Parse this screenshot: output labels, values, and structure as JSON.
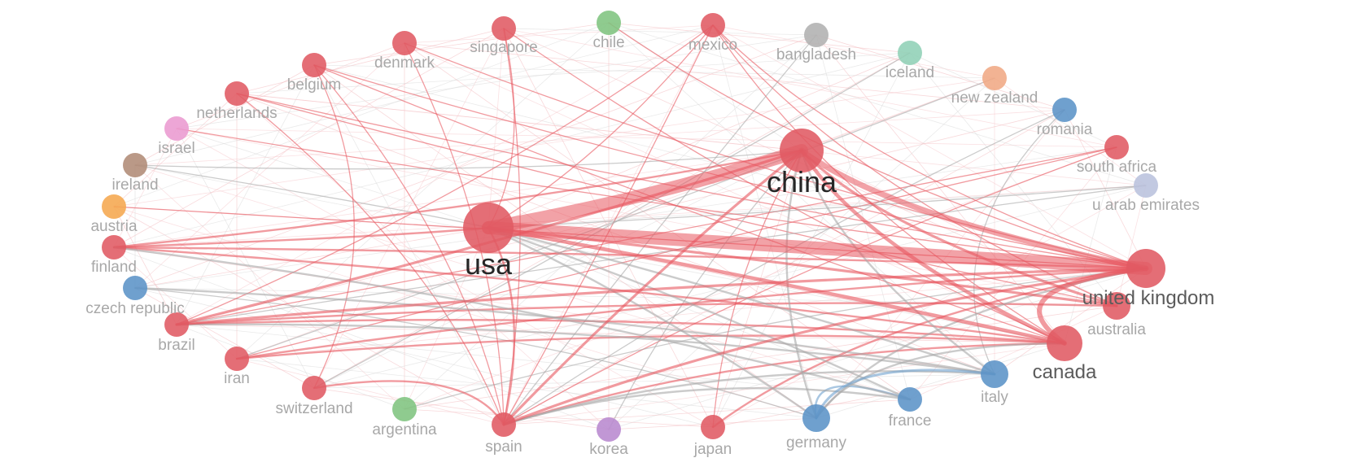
{
  "colors": {
    "red": "#e05a63",
    "blue": "#5b93c7",
    "green": "#7fc47f",
    "grey": "#b0b0b0",
    "teal": "#8fd0b6",
    "peach": "#f0a884",
    "pink": "#ea9ad0",
    "brown": "#b08b76",
    "orange": "#f5a74e",
    "lavender": "#b9c1dd",
    "purple": "#b889cf",
    "edge_red": "#e8565f",
    "edge_grey": "#a9a9a9",
    "edge_blue": "#6fa2cf"
  },
  "nodes": [
    {
      "id": "usa",
      "label": "usa",
      "color": "red",
      "weight": 10
    },
    {
      "id": "china",
      "label": "china",
      "color": "red",
      "weight": 8
    },
    {
      "id": "united_kingdom",
      "label": "united kingdom",
      "color": "red",
      "weight": 7
    },
    {
      "id": "canada",
      "label": "canada",
      "color": "red",
      "weight": 6
    },
    {
      "id": "australia",
      "label": "australia",
      "color": "red",
      "weight": 3
    },
    {
      "id": "italy",
      "label": "italy",
      "color": "blue",
      "weight": 3
    },
    {
      "id": "germany",
      "label": "germany",
      "color": "blue",
      "weight": 3
    },
    {
      "id": "france",
      "label": "france",
      "color": "blue",
      "weight": 2
    },
    {
      "id": "japan",
      "label": "japan",
      "color": "red",
      "weight": 2
    },
    {
      "id": "korea",
      "label": "korea",
      "color": "purple",
      "weight": 2
    },
    {
      "id": "spain",
      "label": "spain",
      "color": "red",
      "weight": 2
    },
    {
      "id": "argentina",
      "label": "argentina",
      "color": "green",
      "weight": 2
    },
    {
      "id": "switzerland",
      "label": "switzerland",
      "color": "red",
      "weight": 2
    },
    {
      "id": "iran",
      "label": "iran",
      "color": "red",
      "weight": 2
    },
    {
      "id": "brazil",
      "label": "brazil",
      "color": "red",
      "weight": 2
    },
    {
      "id": "czech_republic",
      "label": "czech republic",
      "color": "blue",
      "weight": 2
    },
    {
      "id": "finland",
      "label": "finland",
      "color": "red",
      "weight": 2
    },
    {
      "id": "austria",
      "label": "austria",
      "color": "orange",
      "weight": 2
    },
    {
      "id": "ireland",
      "label": "ireland",
      "color": "brown",
      "weight": 2
    },
    {
      "id": "israel",
      "label": "israel",
      "color": "pink",
      "weight": 2
    },
    {
      "id": "netherlands",
      "label": "netherlands",
      "color": "red",
      "weight": 2
    },
    {
      "id": "belgium",
      "label": "belgium",
      "color": "red",
      "weight": 2
    },
    {
      "id": "denmark",
      "label": "denmark",
      "color": "red",
      "weight": 2
    },
    {
      "id": "singapore",
      "label": "singapore",
      "color": "red",
      "weight": 2
    },
    {
      "id": "chile",
      "label": "chile",
      "color": "green",
      "weight": 2
    },
    {
      "id": "mexico",
      "label": "mexico",
      "color": "red",
      "weight": 2
    },
    {
      "id": "bangladesh",
      "label": "bangladesh",
      "color": "grey",
      "weight": 2
    },
    {
      "id": "iceland",
      "label": "iceland",
      "color": "teal",
      "weight": 2
    },
    {
      "id": "new_zealand",
      "label": "new zealand",
      "color": "peach",
      "weight": 2
    },
    {
      "id": "romania",
      "label": "romania",
      "color": "blue",
      "weight": 2
    },
    {
      "id": "south_africa",
      "label": "south africa",
      "color": "red",
      "weight": 2
    },
    {
      "id": "u_arab_emirates",
      "label": "u arab emirates",
      "color": "lavender",
      "weight": 2
    }
  ],
  "edges": [
    {
      "source": "usa",
      "target": "china",
      "weight": 9,
      "color": "edge_red"
    },
    {
      "source": "usa",
      "target": "united_kingdom",
      "weight": 9,
      "color": "edge_red"
    },
    {
      "source": "china",
      "target": "united_kingdom",
      "weight": 6,
      "color": "edge_red"
    },
    {
      "source": "china",
      "target": "canada",
      "weight": 4,
      "color": "edge_red"
    },
    {
      "source": "united_kingdom",
      "target": "canada",
      "weight": 5,
      "color": "edge_red"
    },
    {
      "source": "usa",
      "target": "canada",
      "weight": 4,
      "color": "edge_red"
    },
    {
      "source": "usa",
      "target": "australia",
      "weight": 3,
      "color": "edge_red"
    },
    {
      "source": "china",
      "target": "australia",
      "weight": 3,
      "color": "edge_red"
    },
    {
      "source": "finland",
      "target": "china",
      "weight": 2,
      "color": "edge_red"
    },
    {
      "source": "finland",
      "target": "usa",
      "weight": 2,
      "color": "edge_red"
    },
    {
      "source": "finland",
      "target": "united_kingdom",
      "weight": 2,
      "color": "edge_red"
    },
    {
      "source": "finland",
      "target": "canada",
      "weight": 2,
      "color": "edge_red"
    },
    {
      "source": "brazil",
      "target": "china",
      "weight": 3,
      "color": "edge_red"
    },
    {
      "source": "brazil",
      "target": "united_kingdom",
      "weight": 3,
      "color": "edge_red"
    },
    {
      "source": "brazil",
      "target": "canada",
      "weight": 2,
      "color": "edge_red"
    },
    {
      "source": "brazil",
      "target": "australia",
      "weight": 2,
      "color": "edge_red"
    },
    {
      "source": "spain",
      "target": "china",
      "weight": 3,
      "color": "edge_red"
    },
    {
      "source": "spain",
      "target": "united_kingdom",
      "weight": 3,
      "color": "edge_red"
    },
    {
      "source": "spain",
      "target": "usa",
      "weight": 2,
      "color": "edge_red"
    },
    {
      "source": "spain",
      "target": "canada",
      "weight": 2,
      "color": "edge_red"
    },
    {
      "source": "switzerland",
      "target": "spain",
      "weight": 2,
      "color": "edge_red"
    },
    {
      "source": "japan",
      "target": "united_kingdom",
      "weight": 2,
      "color": "edge_red"
    },
    {
      "source": "japan",
      "target": "china",
      "weight": 1,
      "color": "edge_red"
    },
    {
      "source": "iran",
      "target": "united_kingdom",
      "weight": 2,
      "color": "edge_red"
    },
    {
      "source": "iran",
      "target": "canada",
      "weight": 2,
      "color": "edge_red"
    },
    {
      "source": "ireland",
      "target": "china",
      "weight": 1,
      "color": "edge_grey"
    },
    {
      "source": "ireland",
      "target": "usa",
      "weight": 1,
      "color": "edge_grey"
    },
    {
      "source": "germany",
      "target": "italy",
      "weight": 3,
      "color": "edge_blue"
    },
    {
      "source": "germany",
      "target": "france",
      "weight": 2,
      "color": "edge_blue"
    },
    {
      "source": "germany",
      "target": "united_kingdom",
      "weight": 2,
      "color": "edge_grey"
    },
    {
      "source": "germany",
      "target": "canada",
      "weight": 2,
      "color": "edge_grey"
    },
    {
      "source": "germany",
      "target": "china",
      "weight": 2,
      "color": "edge_grey"
    },
    {
      "source": "germany",
      "target": "usa",
      "weight": 2,
      "color": "edge_grey"
    },
    {
      "source": "italy",
      "target": "usa",
      "weight": 2,
      "color": "edge_grey"
    },
    {
      "source": "italy",
      "target": "china",
      "weight": 2,
      "color": "edge_grey"
    },
    {
      "source": "italy",
      "target": "spain",
      "weight": 2,
      "color": "edge_grey"
    },
    {
      "source": "italy",
      "target": "brazil",
      "weight": 2,
      "color": "edge_grey"
    },
    {
      "source": "france",
      "target": "usa",
      "weight": 2,
      "color": "edge_grey"
    },
    {
      "source": "france",
      "target": "finland",
      "weight": 2,
      "color": "edge_grey"
    },
    {
      "source": "france",
      "target": "spain",
      "weight": 2,
      "color": "edge_grey"
    },
    {
      "source": "czech_republic",
      "target": "italy",
      "weight": 2,
      "color": "edge_grey"
    },
    {
      "source": "czech_republic",
      "target": "germany",
      "weight": 1,
      "color": "edge_grey"
    },
    {
      "source": "mexico",
      "target": "usa",
      "weight": 1,
      "color": "edge_red"
    },
    {
      "source": "mexico",
      "target": "united_kingdom",
      "weight": 1,
      "color": "edge_red"
    },
    {
      "source": "mexico",
      "target": "brazil",
      "weight": 1,
      "color": "edge_red"
    },
    {
      "source": "mexico",
      "target": "spain",
      "weight": 1,
      "color": "edge_red"
    },
    {
      "source": "mexico",
      "target": "canada",
      "weight": 1,
      "color": "edge_red"
    },
    {
      "source": "mexico",
      "target": "australia",
      "weight": 1,
      "color": "edge_red"
    },
    {
      "source": "belgium",
      "target": "united_kingdom",
      "weight": 1,
      "color": "edge_red"
    },
    {
      "source": "belgium",
      "target": "spain",
      "weight": 1,
      "color": "edge_red"
    },
    {
      "source": "belgium",
      "target": "switzerland",
      "weight": 1,
      "color": "edge_red"
    },
    {
      "source": "belgium",
      "target": "canada",
      "weight": 1,
      "color": "edge_red"
    },
    {
      "source": "netherlands",
      "target": "united_kingdom",
      "weight": 1,
      "color": "edge_red"
    },
    {
      "source": "netherlands",
      "target": "spain",
      "weight": 1,
      "color": "edge_red"
    },
    {
      "source": "netherlands",
      "target": "australia",
      "weight": 1,
      "color": "edge_red"
    },
    {
      "source": "denmark",
      "target": "united_kingdom",
      "weight": 1,
      "color": "edge_red"
    },
    {
      "source": "denmark",
      "target": "spain",
      "weight": 1,
      "color": "edge_red"
    },
    {
      "source": "singapore",
      "target": "spain",
      "weight": 1,
      "color": "edge_red"
    },
    {
      "source": "singapore",
      "target": "canada",
      "weight": 1,
      "color": "edge_red"
    },
    {
      "source": "singapore",
      "target": "usa",
      "weight": 1,
      "color": "edge_red"
    },
    {
      "source": "south_africa",
      "target": "spain",
      "weight": 1,
      "color": "edge_red"
    },
    {
      "source": "south_africa",
      "target": "brazil",
      "weight": 1,
      "color": "edge_red"
    },
    {
      "source": "south_africa",
      "target": "iran",
      "weight": 1,
      "color": "edge_red"
    },
    {
      "source": "romania",
      "target": "italy",
      "weight": 1,
      "color": "edge_grey"
    },
    {
      "source": "romania",
      "target": "spain",
      "weight": 1,
      "color": "edge_grey"
    },
    {
      "source": "u_arab_emirates",
      "target": "brazil",
      "weight": 1,
      "color": "edge_grey"
    },
    {
      "source": "u_arab_emirates",
      "target": "usa",
      "weight": 1,
      "color": "edge_grey"
    },
    {
      "source": "iceland",
      "target": "switzerland",
      "weight": 1,
      "color": "edge_grey"
    },
    {
      "source": "bangladesh",
      "target": "spain",
      "weight": 1,
      "color": "edge_grey"
    },
    {
      "source": "new_zealand",
      "target": "iran",
      "weight": 1,
      "color": "edge_grey"
    },
    {
      "source": "chile",
      "target": "united_kingdom",
      "weight": 1,
      "color": "edge_red"
    },
    {
      "source": "israel",
      "target": "united_kingdom",
      "weight": 1,
      "color": "edge_red"
    },
    {
      "source": "austria",
      "target": "united_kingdom",
      "weight": 1,
      "color": "edge_red"
    },
    {
      "source": "korea",
      "target": "china",
      "weight": 1,
      "color": "edge_grey"
    },
    {
      "source": "argentina",
      "target": "united_kingdom",
      "weight": 1,
      "color": "edge_grey"
    }
  ]
}
